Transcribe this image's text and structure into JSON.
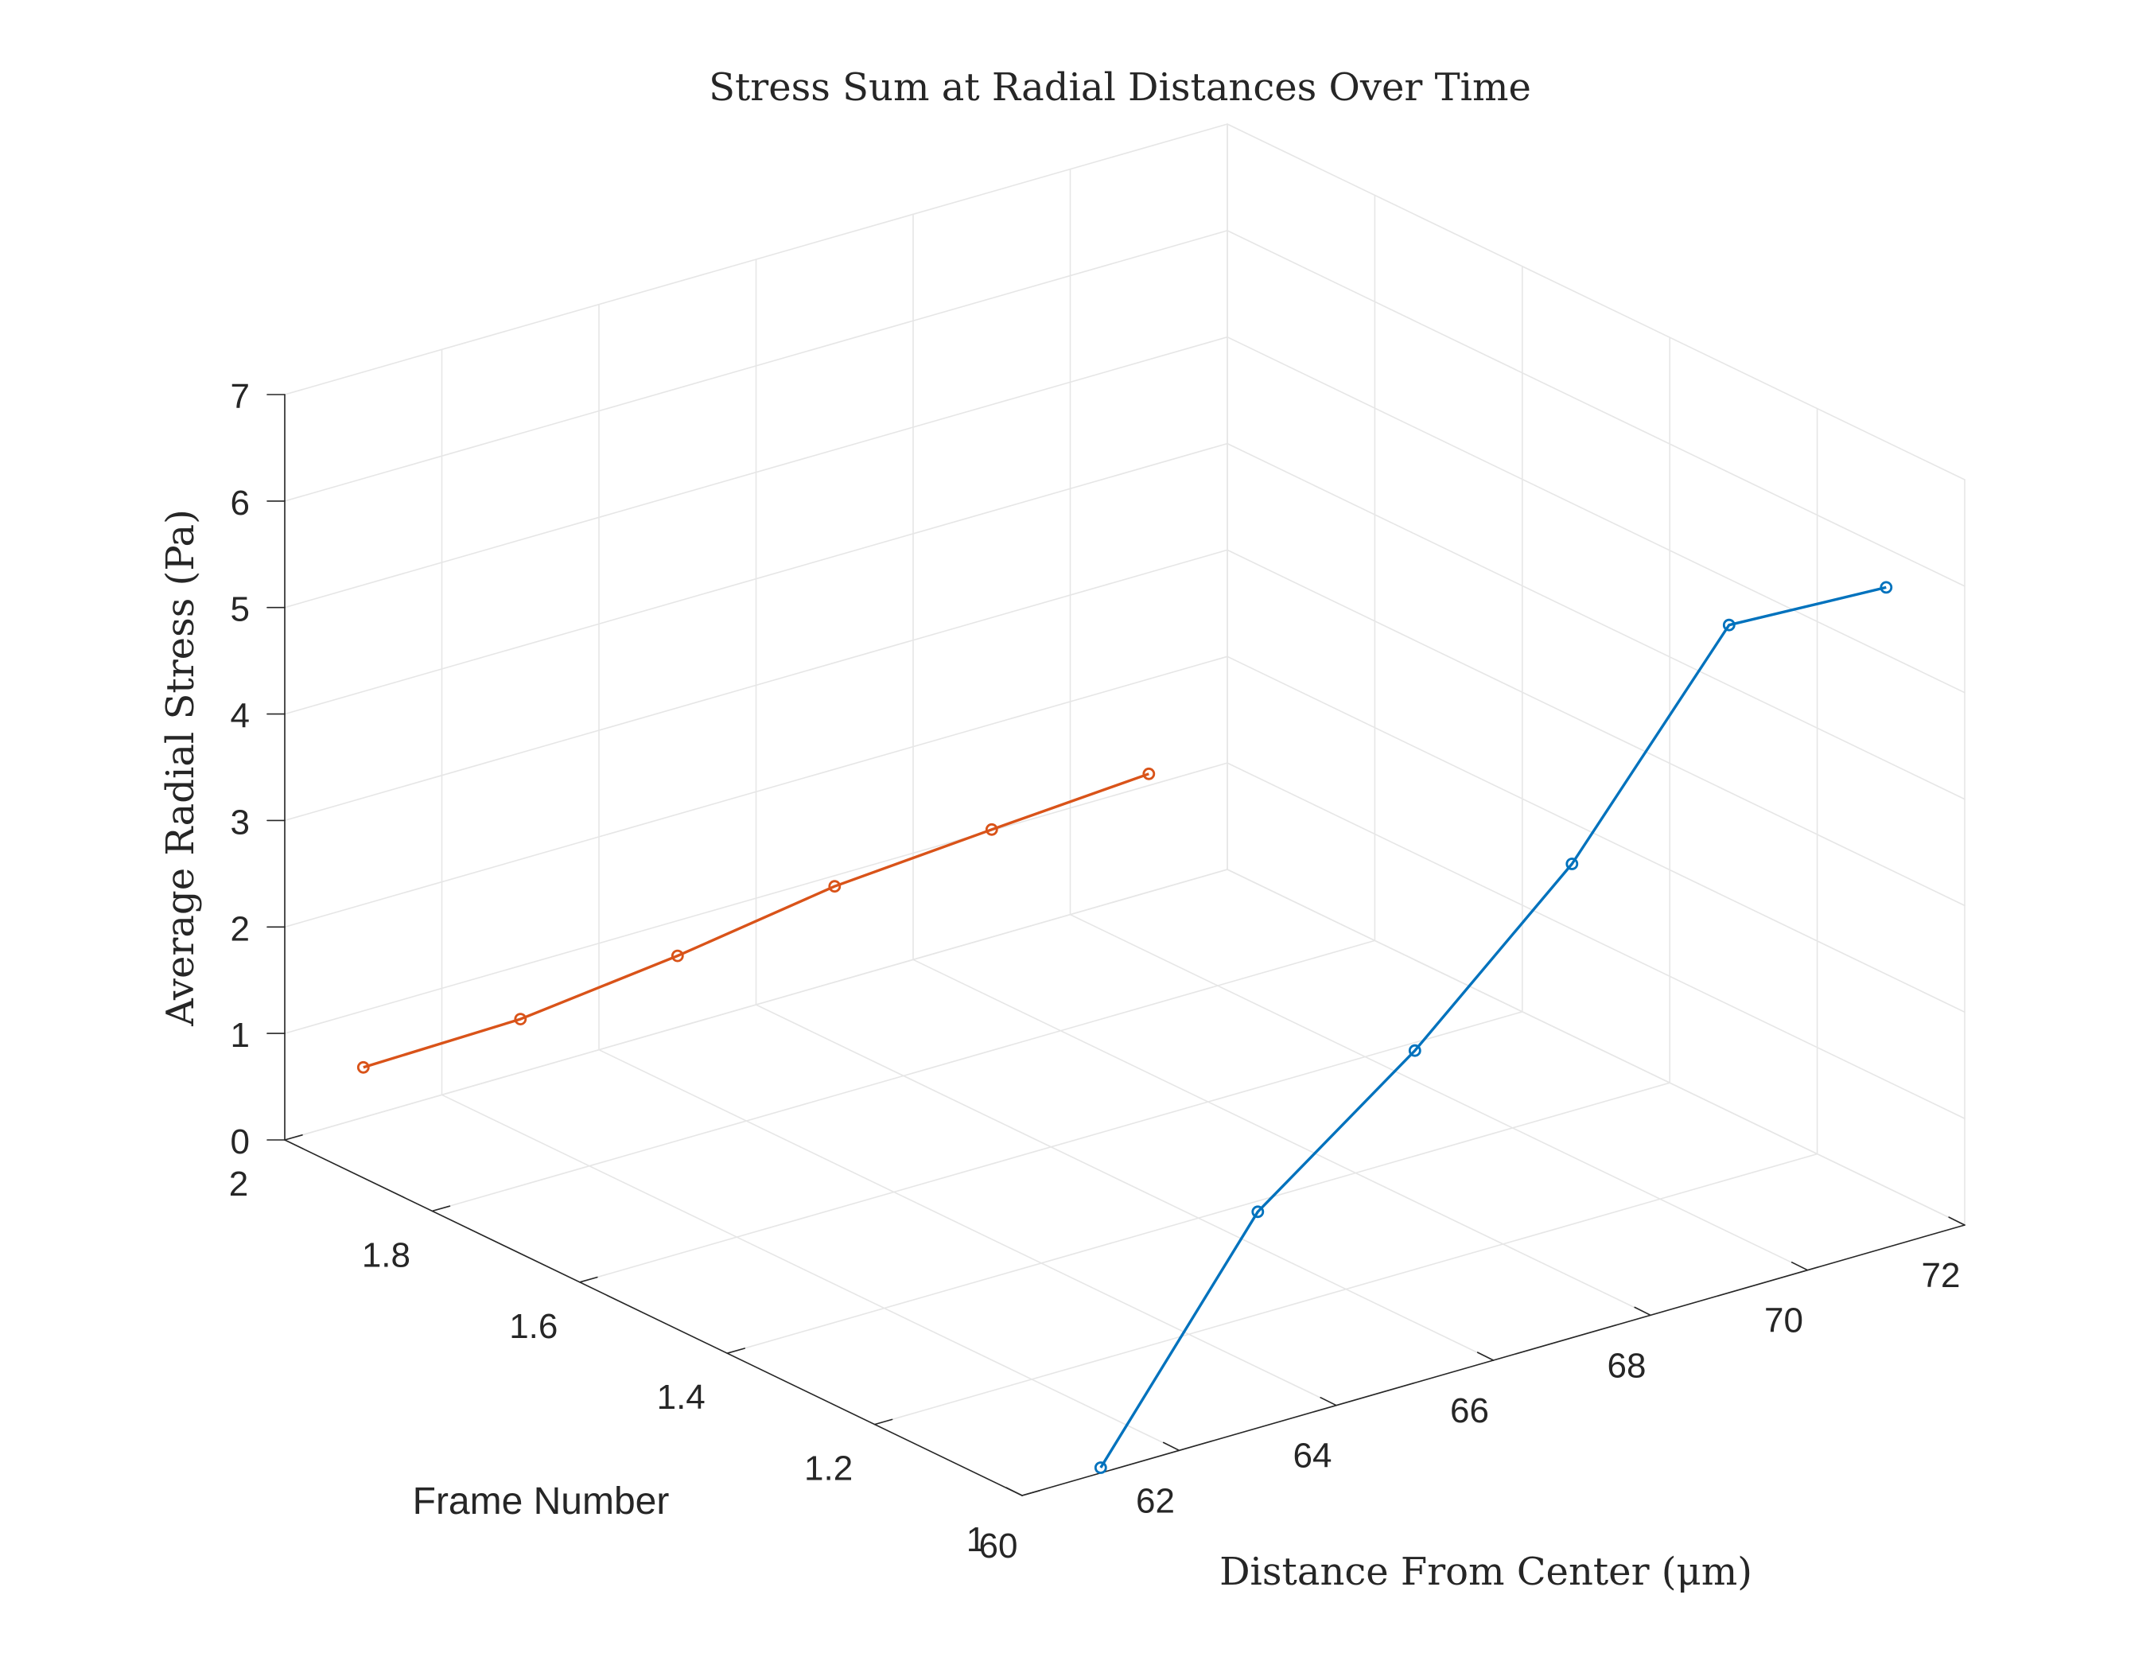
{
  "chart_data": {
    "type": "line",
    "title": "Stress Sum at Radial Distances Over Time",
    "xlabel": "Distance From Center (μm)",
    "ylabel": "Frame Number",
    "zlabel": "Average Radial Stress (Pa)",
    "xlim": [
      60,
      72
    ],
    "ylim": [
      1,
      2
    ],
    "zlim": [
      0,
      7
    ],
    "x_ticks": [
      "60",
      "62",
      "64",
      "66",
      "68",
      "70",
      "72"
    ],
    "y_ticks": [
      "1",
      "1.2",
      "1.4",
      "1.6",
      "1.8",
      "2"
    ],
    "z_ticks": [
      "0",
      "1",
      "2",
      "3",
      "4",
      "5",
      "6",
      "7"
    ],
    "grid": true,
    "series": [
      {
        "color": "#0072BD",
        "marker": "circle",
        "x": [
          61,
          63,
          65,
          67,
          69,
          71
        ],
        "y": [
          1,
          1,
          1,
          1,
          1,
          1
        ],
        "z": [
          0.05,
          2.03,
          3.12,
          4.45,
          6.27,
          6.2
        ]
      },
      {
        "color": "#D95319",
        "marker": "circle",
        "x": [
          61,
          63,
          65,
          67,
          69,
          71
        ],
        "y": [
          2,
          2,
          2,
          2,
          2,
          2
        ],
        "z": [
          0.47,
          0.5,
          0.67,
          0.9,
          1.01,
          1.11
        ]
      }
    ]
  }
}
